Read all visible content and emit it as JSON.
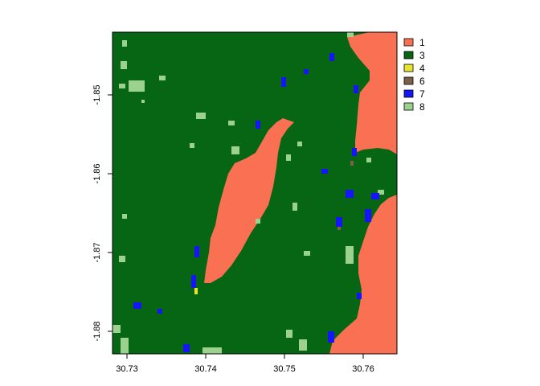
{
  "map": {
    "type": "raster",
    "x_ticks": [
      "30.73",
      "30.74",
      "30.75",
      "30.76"
    ],
    "y_ticks": [
      "-1.85",
      "-1.86",
      "-1.87",
      "-1.88"
    ],
    "legend": [
      {
        "label": "1",
        "color": "#FA7052"
      },
      {
        "label": "3",
        "color": "#066613"
      },
      {
        "label": "4",
        "color": "#E5E52B"
      },
      {
        "label": "6",
        "color": "#7A6148"
      },
      {
        "label": "7",
        "color": "#1515F5"
      },
      {
        "label": "8",
        "color": "#9BD38E"
      }
    ]
  }
}
